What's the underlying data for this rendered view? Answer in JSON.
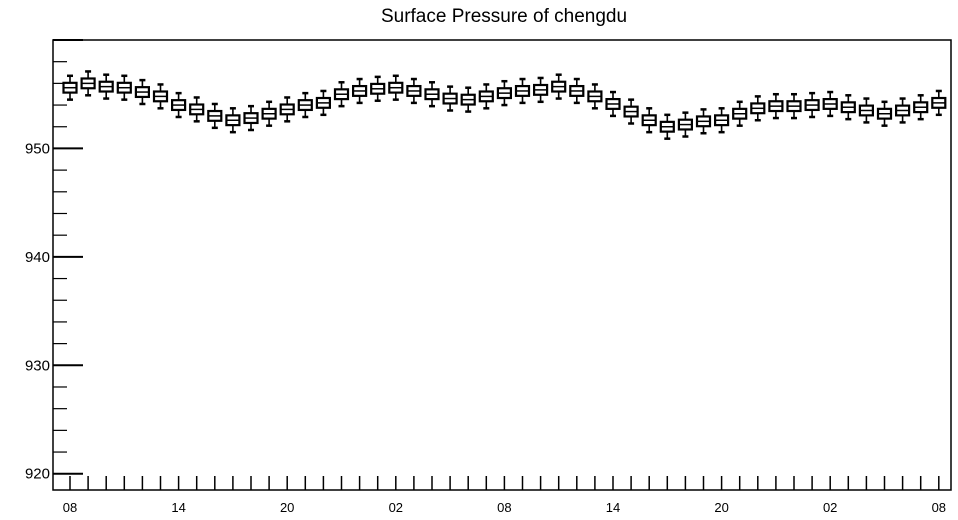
{
  "chart_data": {
    "type": "boxplot",
    "title": "Surface Pressure of chengdu",
    "xlabel": "",
    "ylabel": "",
    "ylim": [
      918.5,
      960
    ],
    "yticks": [
      920,
      930,
      940,
      950
    ],
    "ytick_labels": [
      "920",
      "930",
      "940",
      "950"
    ],
    "x_count": 49,
    "xtick_labels": [
      {
        "index": 0,
        "label": "08"
      },
      {
        "index": 6,
        "label": "14"
      },
      {
        "index": 12,
        "label": "20"
      },
      {
        "index": 18,
        "label": "02"
      },
      {
        "index": 24,
        "label": "08"
      },
      {
        "index": 30,
        "label": "14"
      },
      {
        "index": 36,
        "label": "20"
      },
      {
        "index": 42,
        "label": "02"
      },
      {
        "index": 48,
        "label": "08"
      }
    ],
    "grid": false,
    "legend": "none",
    "median": [
      955.6,
      956.0,
      955.7,
      955.6,
      955.2,
      954.8,
      954.0,
      953.6,
      953.0,
      952.6,
      952.8,
      953.2,
      953.6,
      954.0,
      954.2,
      955.0,
      955.3,
      955.5,
      955.6,
      955.3,
      955.0,
      954.6,
      954.5,
      954.8,
      955.1,
      955.3,
      955.4,
      955.7,
      955.3,
      954.8,
      954.1,
      953.4,
      952.6,
      952.0,
      952.2,
      952.5,
      952.6,
      953.2,
      953.7,
      953.9,
      953.9,
      954.0,
      954.1,
      953.8,
      953.5,
      953.2,
      953.5,
      953.8,
      954.2
    ],
    "box_half_height": 0.45,
    "whisker_extent": 1.1
  }
}
